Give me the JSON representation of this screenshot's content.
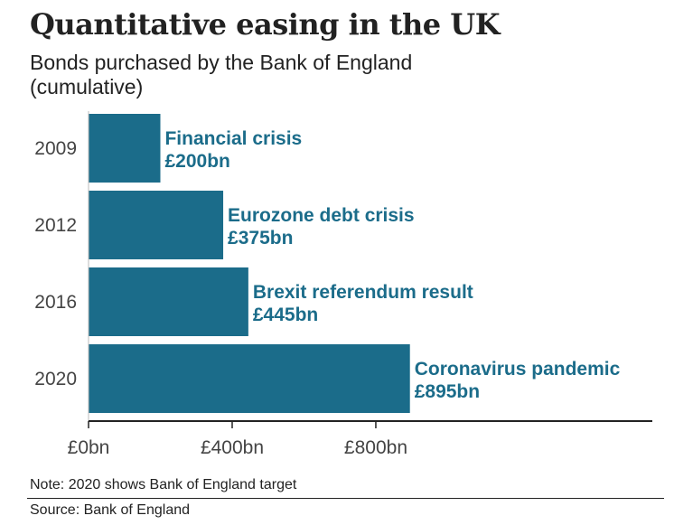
{
  "title": "Quantitative easing in the UK",
  "subtitle": "Bonds purchased by the Bank of England (cumulative)",
  "note": "Note: 2020 shows Bank of England target",
  "source": "Source: Bank of England",
  "colors": {
    "bar": "#1b6c8a",
    "label": "#1b6c8a",
    "axis": "#222222"
  },
  "chart_data": {
    "type": "bar",
    "orientation": "horizontal",
    "categories": [
      "2009",
      "2012",
      "2016",
      "2020"
    ],
    "values": [
      200,
      375,
      445,
      895
    ],
    "annotations": [
      {
        "event": "Financial crisis",
        "value_label": "£200bn"
      },
      {
        "event": "Eurozone debt crisis",
        "value_label": "£375bn"
      },
      {
        "event": "Brexit referendum result",
        "value_label": "£445bn"
      },
      {
        "event": "Coronavirus pandemic",
        "value_label": "£895bn"
      }
    ],
    "xticks": [
      0,
      400,
      800
    ],
    "xtick_labels": [
      "£0bn",
      "£400bn",
      "£800bn"
    ],
    "xlim": [
      0,
      1570
    ],
    "grid": false,
    "legend": "none"
  }
}
